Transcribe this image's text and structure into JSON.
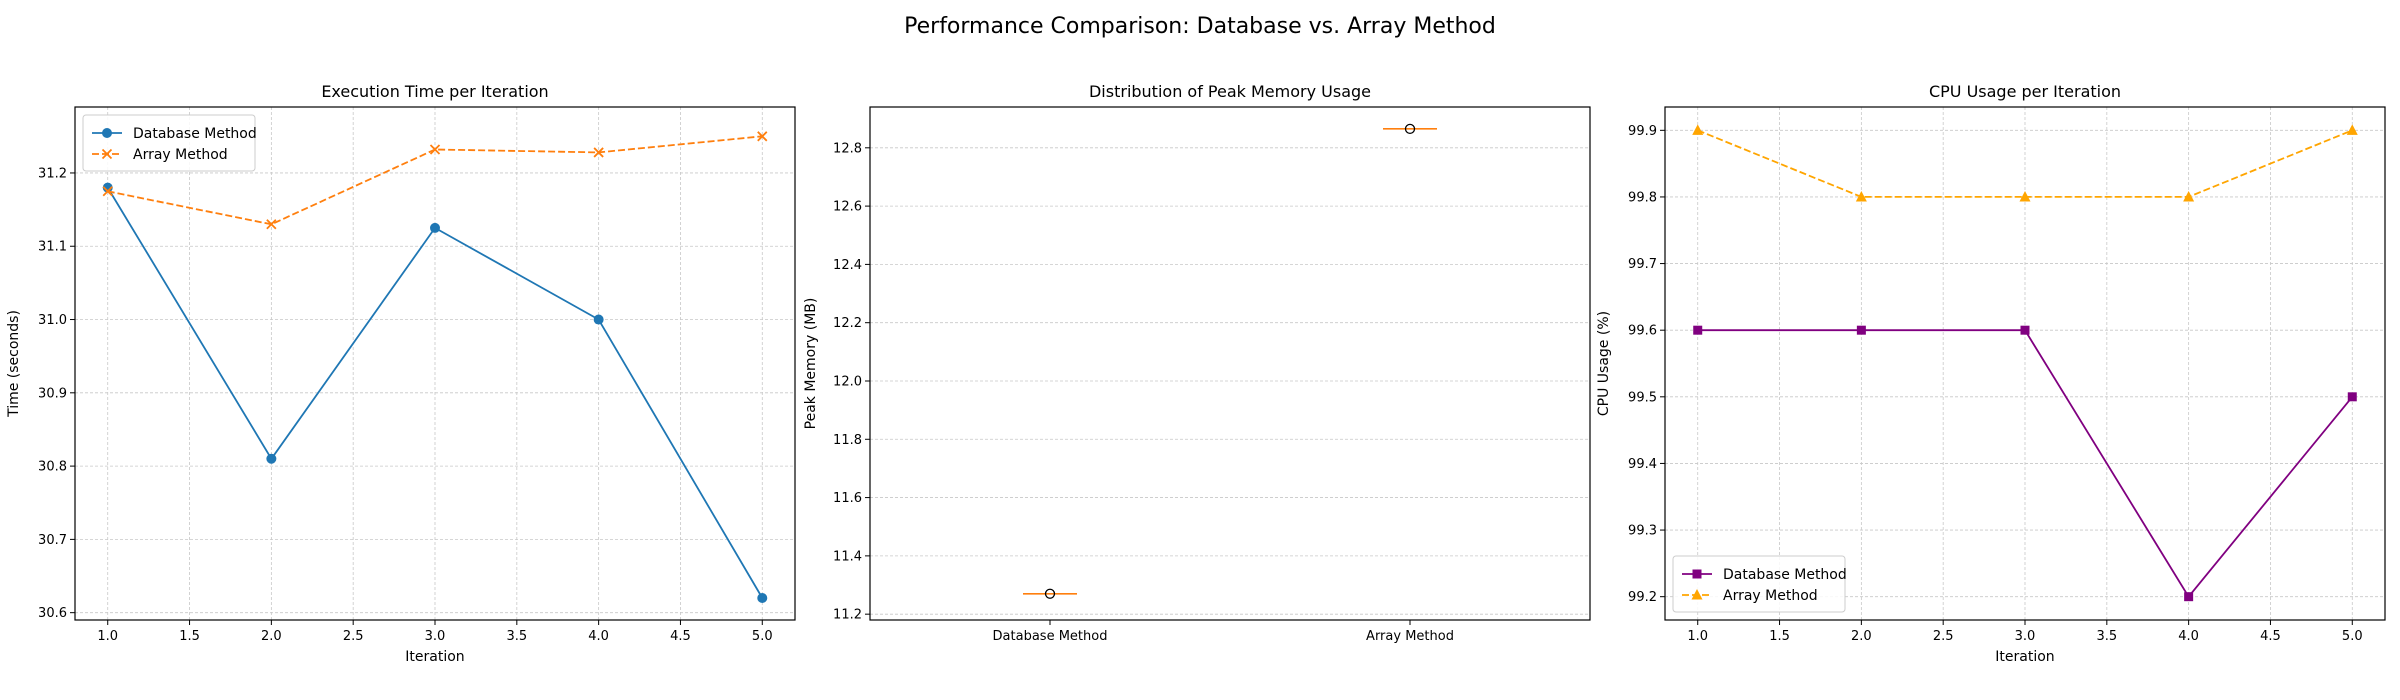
{
  "figure": {
    "title": "Performance Comparison: Database vs. Array Method"
  },
  "chart_data": [
    {
      "type": "line",
      "title": "Execution Time per Iteration",
      "xlabel": "Iteration",
      "ylabel": "Time (seconds)",
      "xlim": [
        0.8,
        5.2
      ],
      "ylim": [
        30.59,
        31.29
      ],
      "xticks": [
        "1.0",
        "1.5",
        "2.0",
        "2.5",
        "3.0",
        "3.5",
        "4.0",
        "4.5",
        "5.0"
      ],
      "yticks": [
        "30.6",
        "30.7",
        "30.8",
        "30.9",
        "31.0",
        "31.1",
        "31.2"
      ],
      "grid": true,
      "legend_position": "upper-left",
      "x": [
        1,
        2,
        3,
        4,
        5
      ],
      "series": [
        {
          "name": "Database Method",
          "values": [
            31.18,
            30.81,
            31.125,
            31.0,
            30.62
          ],
          "color": "#1f77b4",
          "marker": "circle",
          "dash": "solid"
        },
        {
          "name": "Array Method",
          "values": [
            31.175,
            31.13,
            31.232,
            31.228,
            31.25
          ],
          "color": "#ff7f0e",
          "marker": "x",
          "dash": "dashed"
        }
      ]
    },
    {
      "type": "box",
      "title": "Distribution of Peak Memory Usage",
      "xlabel": "",
      "ylabel": "Peak Memory (MB)",
      "ylim": [
        11.18,
        12.94
      ],
      "yticks": [
        "11.2",
        "11.4",
        "11.6",
        "11.8",
        "12.0",
        "12.2",
        "12.4",
        "12.6",
        "12.8"
      ],
      "grid": true,
      "categories": [
        "Database Method",
        "Array Method"
      ],
      "values": [
        11.27,
        12.865
      ],
      "median_color": "#ff7f0e",
      "outlier_marker": "open-circle"
    },
    {
      "type": "line",
      "title": "CPU Usage per Iteration",
      "xlabel": "Iteration",
      "ylabel": "CPU Usage (%)",
      "xlim": [
        0.8,
        5.2
      ],
      "ylim": [
        99.165,
        99.935
      ],
      "xticks": [
        "1.0",
        "1.5",
        "2.0",
        "2.5",
        "3.0",
        "3.5",
        "4.0",
        "4.5",
        "5.0"
      ],
      "yticks": [
        "99.2",
        "99.3",
        "99.4",
        "99.5",
        "99.6",
        "99.7",
        "99.8",
        "99.9"
      ],
      "grid": true,
      "legend_position": "lower-left",
      "x": [
        1,
        2,
        3,
        4,
        5
      ],
      "series": [
        {
          "name": "Database Method",
          "values": [
            99.6,
            99.6,
            99.6,
            99.2,
            99.5
          ],
          "color": "#800080",
          "marker": "square",
          "dash": "solid"
        },
        {
          "name": "Array Method",
          "values": [
            99.9,
            99.8,
            99.8,
            99.8,
            99.9
          ],
          "color": "#ffa500",
          "marker": "triangle",
          "dash": "dashed"
        }
      ]
    }
  ]
}
